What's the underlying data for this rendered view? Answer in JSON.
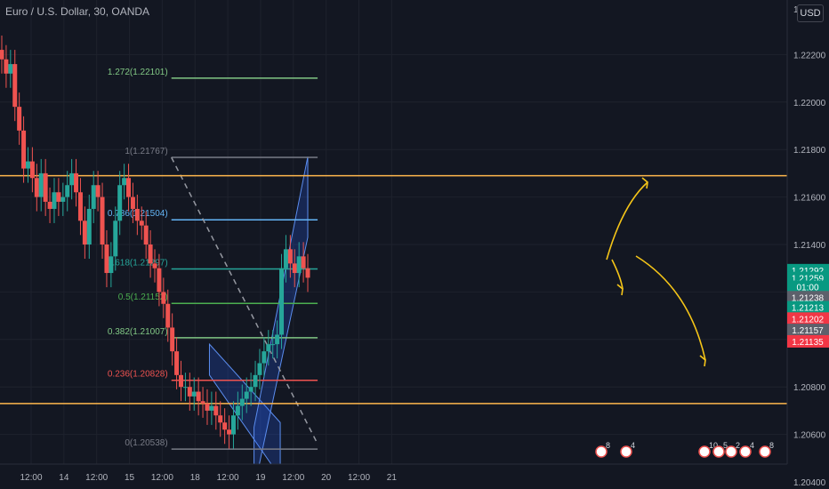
{
  "window": {
    "title": "Euro / U.S. Dollar, 30, OANDA",
    "currency_button": "USD"
  },
  "colors": {
    "background": "#131722",
    "grid": "#1e222d",
    "up": "#26a69a",
    "down": "#ef5350",
    "axis_text": "#b2b5be",
    "orange_line": "#ffb74d",
    "channel_fill": "#2962ff",
    "arrow": "#f5c518"
  },
  "chart_data": {
    "type": "candlestick",
    "symbol": "EURUSD",
    "interval": "30",
    "source": "OANDA",
    "x_labels": [
      "12:00",
      "14",
      "12:00",
      "15",
      "12:00",
      "18",
      "12:00",
      "19",
      "12:00",
      "20",
      "12:00",
      "21"
    ],
    "y_ticks": [
      "1.22200",
      "1.22000",
      "1.21800",
      "1.21600",
      "1.21400",
      "1.21200",
      "1.21000",
      "1.20800",
      "1.20600",
      "1.20400"
    ],
    "y_top_tick_partial": "1.2",
    "ylim": [
      1.2037,
      1.2243
    ],
    "price_tags": [
      {
        "label": "1.21292",
        "value": 1.21292,
        "color": "#089981"
      },
      {
        "label": "1.21259",
        "value": 1.21259,
        "color": "#089981"
      },
      {
        "label": "01:00",
        "value": 1.21222,
        "color": "#089981"
      },
      {
        "label": "1.21238",
        "value": 1.21178,
        "color": "#5d606b"
      },
      {
        "label": "1.21213",
        "value": 1.21136,
        "color": "#089981"
      },
      {
        "label": "1.21202",
        "value": 1.21088,
        "color": "#f23645"
      },
      {
        "label": "1.21157",
        "value": 1.2104,
        "color": "#5d606b"
      },
      {
        "label": "1.21135",
        "value": 1.20992,
        "color": "#f23645"
      }
    ],
    "fib_levels": [
      {
        "label": "1.272(1.22101)",
        "ratio": 1.272,
        "price": 1.22101,
        "color": "#81c784"
      },
      {
        "label": "1(1.21767)",
        "ratio": 1,
        "price": 1.21767,
        "color": "#787b86"
      },
      {
        "label": "0.786(1.21504)",
        "ratio": 0.786,
        "price": 1.21504,
        "color": "#64b5f6"
      },
      {
        "label": "0.618(1.21297)",
        "ratio": 0.618,
        "price": 1.21297,
        "color": "#26a69a"
      },
      {
        "label": "0.5(1.21152)",
        "ratio": 0.5,
        "price": 1.21152,
        "color": "#4caf50"
      },
      {
        "label": "0.382(1.21007)",
        "ratio": 0.382,
        "price": 1.21007,
        "color": "#81c784"
      },
      {
        "label": "0.236(1.20828)",
        "ratio": 0.236,
        "price": 1.20828,
        "color": "#ef5350"
      },
      {
        "label": "0(1.20538)",
        "ratio": 0,
        "price": 1.20538,
        "color": "#787b86"
      }
    ],
    "horizontal_lines": [
      1.2169,
      1.2073
    ],
    "price_path": [
      1.2218,
      1.2212,
      1.2216,
      1.2198,
      1.2188,
      1.2172,
      1.2175,
      1.2168,
      1.216,
      1.217,
      1.2158,
      1.2155,
      1.2162,
      1.2158,
      1.216,
      1.2165,
      1.217,
      1.2162,
      1.215,
      1.214,
      1.2155,
      1.2165,
      1.216,
      1.214,
      1.2128,
      1.2135,
      1.215,
      1.2165,
      1.2168,
      1.216,
      1.2155,
      1.215,
      1.2148,
      1.214,
      1.2132,
      1.213,
      1.212,
      1.2115,
      1.2105,
      1.2095,
      1.2085,
      1.208,
      1.208,
      1.2076,
      1.2078,
      1.2074,
      1.2073,
      1.207,
      1.2072,
      1.2068,
      1.2065,
      1.2062,
      1.206,
      1.2068,
      1.2072,
      1.2075,
      1.2078,
      1.208,
      1.2085,
      1.209,
      1.2095,
      1.2098,
      1.2098,
      1.2102,
      1.213,
      1.2138,
      1.2132,
      1.2128,
      1.2135,
      1.213,
      1.2126
    ],
    "fib_trend_dashed": {
      "from": [
        2.14,
        1.21767
      ],
      "to": [
        4.37,
        1.2056
      ]
    },
    "down_channel": {
      "upper": [
        [
          2.72,
          1.2098
        ],
        [
          3.8,
          1.2065
        ]
      ],
      "lower": [
        [
          2.72,
          1.2085
        ],
        [
          3.8,
          1.2042
        ]
      ]
    },
    "up_channel": {
      "upper": [
        [
          3.4,
          1.2063
        ],
        [
          4.22,
          1.2177
        ]
      ],
      "lower": [
        [
          3.4,
          1.2037
        ],
        [
          4.22,
          1.2143
        ]
      ]
    },
    "forecast_arrows": [
      "up",
      "down",
      "down"
    ],
    "event_markers": [
      {
        "label": "8"
      },
      {
        "label": "4"
      },
      {
        "label": "10"
      },
      {
        "label": "5"
      },
      {
        "label": "2"
      },
      {
        "label": "4"
      },
      {
        "label": "8"
      }
    ]
  }
}
